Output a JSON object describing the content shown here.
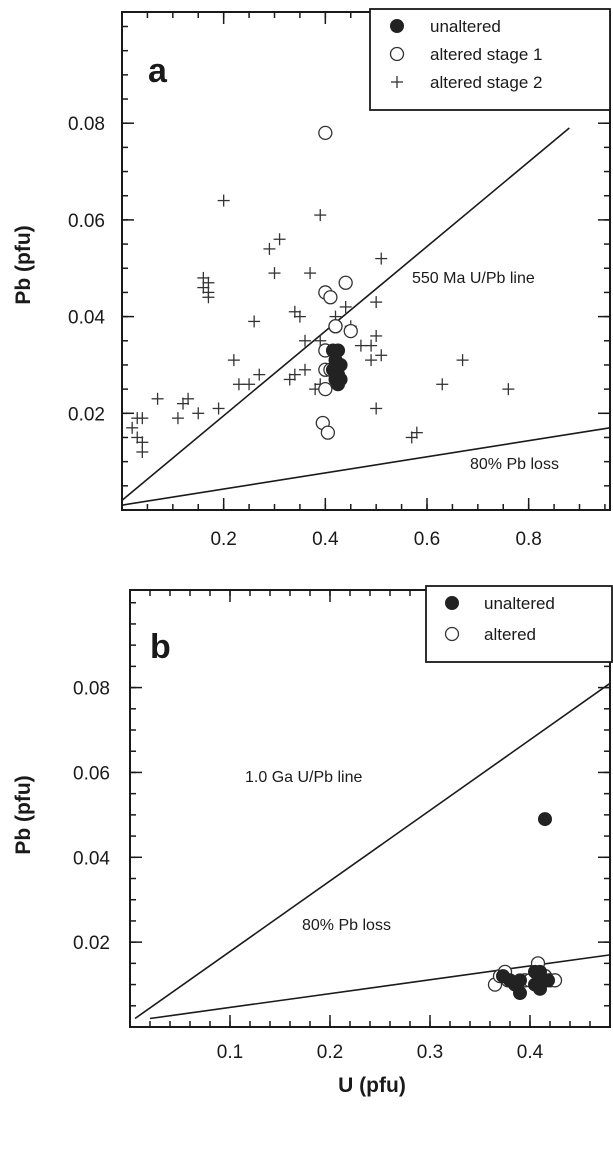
{
  "chart_data": [
    {
      "type": "scatter",
      "panel_label": "a",
      "title": "",
      "xlabel": "",
      "ylabel": "Pb (pfu)",
      "xlim": [
        0,
        0.96
      ],
      "ylim": [
        0,
        0.103
      ],
      "x_ticks": [
        0.2,
        0.4,
        0.6,
        0.8
      ],
      "x_tick_labels": [
        "0.2",
        "0.4",
        "0.6",
        "0.8"
      ],
      "y_ticks": [
        0.02,
        0.04,
        0.06,
        0.08
      ],
      "y_tick_labels": [
        "0.02",
        "0.04",
        "0.06",
        "0.08"
      ],
      "legend_position": "top-right",
      "series": [
        {
          "name": "unaltered",
          "marker": "filled-circle",
          "x": [
            0.415,
            0.425,
            0.42,
            0.43,
            0.415,
            0.425,
            0.42,
            0.43,
            0.425
          ],
          "y": [
            0.033,
            0.033,
            0.031,
            0.03,
            0.029,
            0.028,
            0.027,
            0.027,
            0.026
          ]
        },
        {
          "name": "altered stage 1",
          "marker": "open-circle",
          "x": [
            0.4,
            0.4,
            0.41,
            0.44,
            0.42,
            0.42,
            0.45,
            0.4,
            0.4,
            0.41,
            0.4,
            0.395,
            0.405
          ],
          "y": [
            0.078,
            0.045,
            0.044,
            0.047,
            0.038,
            0.038,
            0.037,
            0.033,
            0.029,
            0.029,
            0.025,
            0.018,
            0.016
          ]
        },
        {
          "name": "altered stage 2",
          "marker": "plus",
          "x": [
            0.2,
            0.39,
            0.31,
            0.29,
            0.3,
            0.16,
            0.17,
            0.16,
            0.17,
            0.17,
            0.37,
            0.51,
            0.44,
            0.42,
            0.5,
            0.45,
            0.49,
            0.34,
            0.35,
            0.26,
            0.36,
            0.39,
            0.47,
            0.5,
            0.49,
            0.51,
            0.22,
            0.25,
            0.27,
            0.23,
            0.33,
            0.34,
            0.38,
            0.36,
            0.39,
            0.67,
            0.63,
            0.76,
            0.5,
            0.57,
            0.58,
            0.07,
            0.12,
            0.13,
            0.19,
            0.15,
            0.11,
            0.03,
            0.04,
            0.02,
            0.03,
            0.04,
            0.04
          ],
          "y": [
            0.064,
            0.061,
            0.056,
            0.054,
            0.049,
            0.048,
            0.047,
            0.046,
            0.045,
            0.044,
            0.049,
            0.052,
            0.042,
            0.04,
            0.043,
            0.038,
            0.031,
            0.041,
            0.04,
            0.039,
            0.035,
            0.035,
            0.034,
            0.036,
            0.034,
            0.032,
            0.031,
            0.026,
            0.028,
            0.026,
            0.027,
            0.028,
            0.025,
            0.029,
            0.026,
            0.031,
            0.026,
            0.025,
            0.021,
            0.015,
            0.016,
            0.023,
            0.022,
            0.023,
            0.021,
            0.02,
            0.019,
            0.019,
            0.019,
            0.017,
            0.015,
            0.014,
            0.012
          ]
        }
      ],
      "reference_lines": [
        {
          "label": "550 Ma U/Pb line",
          "x": [
            0,
            0.88
          ],
          "y": [
            0.002,
            0.079
          ]
        },
        {
          "label": "80% Pb loss",
          "x": [
            0,
            0.96
          ],
          "y": [
            0.001,
            0.017
          ]
        }
      ]
    },
    {
      "type": "scatter",
      "panel_label": "b",
      "title": "",
      "xlabel": "U (pfu)",
      "ylabel": "Pb (pfu)",
      "xlim": [
        0,
        0.48
      ],
      "ylim": [
        0,
        0.103
      ],
      "x_ticks": [
        0.1,
        0.2,
        0.3,
        0.4
      ],
      "x_tick_labels": [
        "0.1",
        "0.2",
        "0.3",
        "0.4"
      ],
      "y_ticks": [
        0.02,
        0.04,
        0.06,
        0.08
      ],
      "y_tick_labels": [
        "0.02",
        "0.04",
        "0.06",
        "0.08"
      ],
      "legend_position": "top-right",
      "series": [
        {
          "name": "unaltered",
          "marker": "filled-circle",
          "x": [
            0.415,
            0.373,
            0.38,
            0.39,
            0.385,
            0.39,
            0.405,
            0.41,
            0.41,
            0.418,
            0.405,
            0.41
          ],
          "y": [
            0.049,
            0.012,
            0.011,
            0.011,
            0.01,
            0.008,
            0.013,
            0.013,
            0.011,
            0.011,
            0.01,
            0.009
          ]
        },
        {
          "name": "altered",
          "marker": "open-circle",
          "x": [
            0.365,
            0.37,
            0.375,
            0.378,
            0.395,
            0.4,
            0.408,
            0.415,
            0.42,
            0.425
          ],
          "y": [
            0.01,
            0.012,
            0.013,
            0.011,
            0.011,
            0.011,
            0.015,
            0.012,
            0.011,
            0.011
          ]
        }
      ],
      "reference_lines": [
        {
          "label": "1.0 Ga U/Pb line",
          "x": [
            0.005,
            0.48
          ],
          "y": [
            0.002,
            0.081
          ]
        },
        {
          "label": "80% Pb loss",
          "x": [
            0.02,
            0.48
          ],
          "y": [
            0.002,
            0.017
          ]
        }
      ]
    }
  ]
}
